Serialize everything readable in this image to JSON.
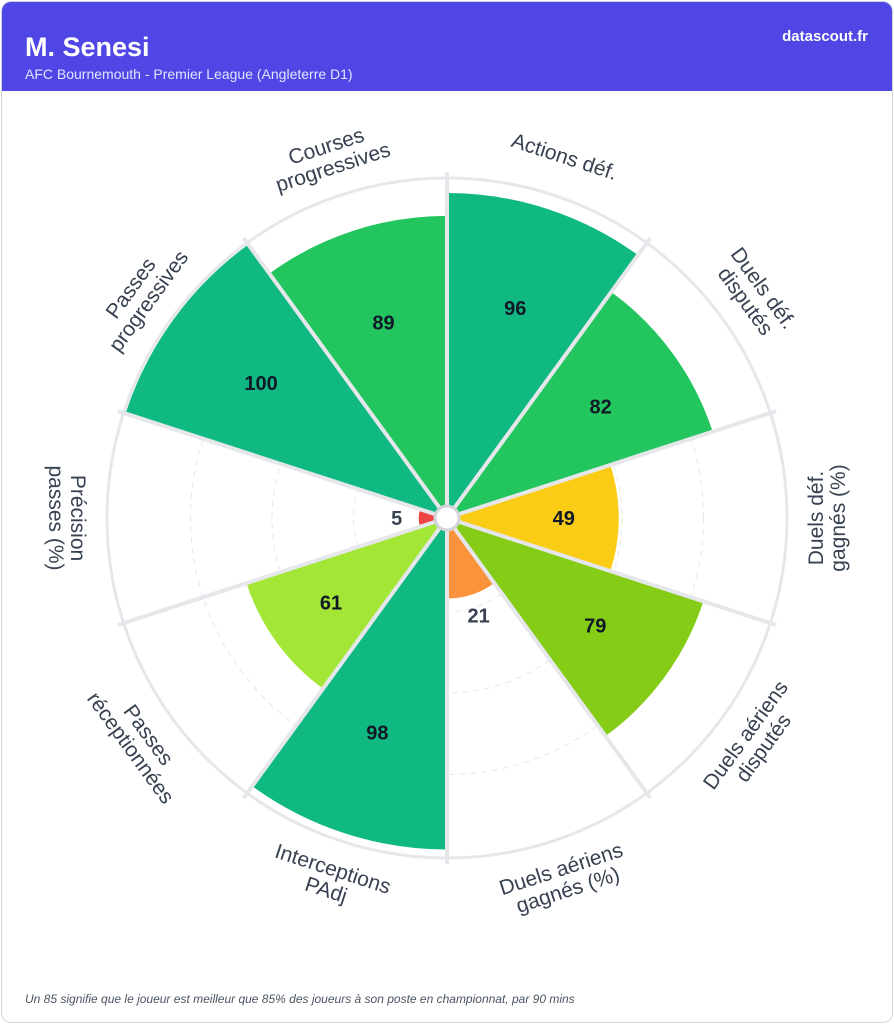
{
  "header": {
    "player": "M. Senesi",
    "subtitle": "AFC Bournemouth - Premier League (Angleterre D1)",
    "brand": "datascout.fr"
  },
  "footer": "Un 85 signifie que le joueur est meilleur que 85% des joueurs à son poste en championnat, par 90 mins",
  "chart_data": {
    "type": "polar-bar",
    "range": [
      0,
      100
    ],
    "grid": true,
    "categories": [
      {
        "label": [
          "Actions déf."
        ],
        "value": 96,
        "color": "#10b981"
      },
      {
        "label": [
          "Duels déf.",
          "disputés"
        ],
        "value": 82,
        "color": "#22c55e"
      },
      {
        "label": [
          "Duels déf.",
          "gagnés (%)"
        ],
        "value": 49,
        "color": "#facc15"
      },
      {
        "label": [
          "Duels aériens",
          "disputés"
        ],
        "value": 79,
        "color": "#84cc16"
      },
      {
        "label": [
          "Duels aériens",
          "gagnés (%)"
        ],
        "value": 21,
        "color": "#fb923c"
      },
      {
        "label": [
          "Interceptions",
          "PAdj"
        ],
        "value": 98,
        "color": "#10b981"
      },
      {
        "label": [
          "Passes",
          "réceptionnées"
        ],
        "value": 61,
        "color": "#a3e635"
      },
      {
        "label": [
          "Précision",
          "passes (%)"
        ],
        "value": 5,
        "color": "#ef4444"
      },
      {
        "label": [
          "Passes",
          "progressives"
        ],
        "value": 100,
        "color": "#10b981"
      },
      {
        "label": [
          "Courses",
          "progressives"
        ],
        "value": 89,
        "color": "#22c55e"
      }
    ]
  }
}
